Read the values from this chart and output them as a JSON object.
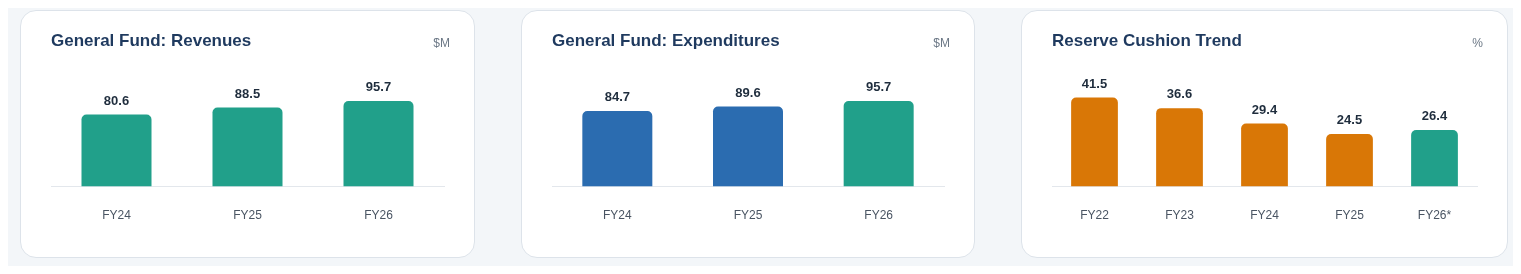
{
  "chart_data": [
    {
      "type": "bar",
      "title": "General Fund: Revenues",
      "annotations": [
        "$M"
      ],
      "categories": [
        "FY24",
        "FY25",
        "FY26"
      ],
      "values": [
        80.6,
        88.5,
        95.7
      ],
      "colors": [
        "#21a08a",
        "#21a08a",
        "#21a08a"
      ],
      "data_labels": true,
      "grid": false,
      "legend": false
    },
    {
      "type": "bar",
      "title": "General Fund: Expenditures",
      "annotations": [
        "$M"
      ],
      "categories": [
        "FY24",
        "FY25",
        "FY26"
      ],
      "values": [
        84.7,
        89.6,
        95.7
      ],
      "colors": [
        "#2b6cb0",
        "#2b6cb0",
        "#21a08a"
      ],
      "data_labels": true,
      "grid": false,
      "legend": false
    },
    {
      "type": "bar",
      "title": "Reserve Cushion Trend",
      "annotations": [
        "%"
      ],
      "categories": [
        "FY22",
        "FY23",
        "FY24",
        "FY25",
        "FY26*"
      ],
      "values": [
        41.5,
        36.6,
        29.4,
        24.5,
        26.4
      ],
      "colors": [
        "#d97706",
        "#d97706",
        "#d97706",
        "#d97706",
        "#21a08a"
      ],
      "data_labels": true,
      "grid": false,
      "legend": false
    }
  ]
}
